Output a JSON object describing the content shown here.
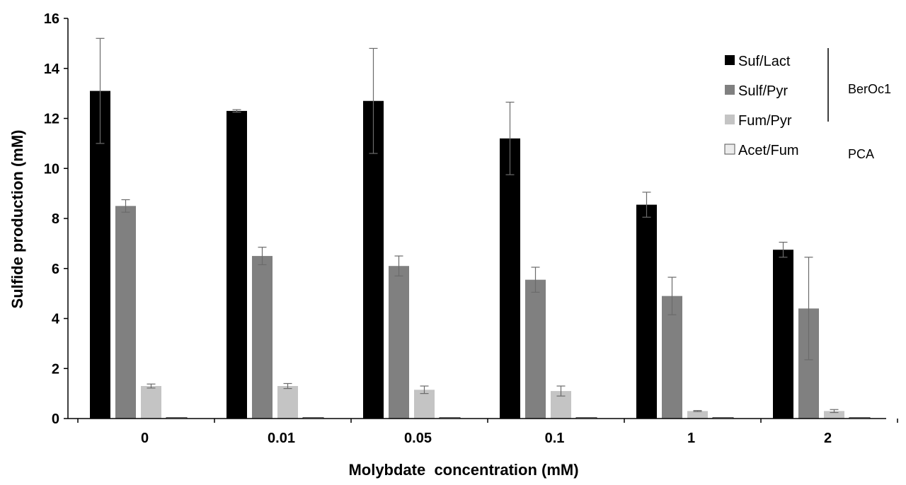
{
  "chart_data": {
    "type": "bar",
    "title": "",
    "xlabel": "Molybdate  concentration (mM)",
    "ylabel": "Sulfide production (mM)",
    "ylim": [
      0,
      16
    ],
    "yticks": [
      0,
      2,
      4,
      6,
      8,
      10,
      12,
      14,
      16
    ],
    "grid": false,
    "legend_position": "top-right",
    "categories": [
      "0",
      "0.01",
      "0.05",
      "0.1",
      "1",
      "2"
    ],
    "series": [
      {
        "name": "Suf/Lact",
        "color": "#000000",
        "values": [
          13.1,
          12.3,
          12.7,
          11.2,
          8.55,
          6.75
        ],
        "errors": [
          2.1,
          0.05,
          2.1,
          1.45,
          0.5,
          0.3
        ]
      },
      {
        "name": "Sulf/Pyr",
        "color": "#808080",
        "values": [
          8.5,
          6.5,
          6.1,
          5.55,
          4.9,
          4.4
        ],
        "errors": [
          0.25,
          0.35,
          0.4,
          0.5,
          0.75,
          2.05
        ]
      },
      {
        "name": "Fum/Pyr",
        "color": "#c4c4c4",
        "values": [
          1.3,
          1.3,
          1.15,
          1.1,
          0.3,
          0.3
        ],
        "errors": [
          0.08,
          0.1,
          0.15,
          0.2,
          0.02,
          0.06
        ]
      },
      {
        "name": "Acet/Fum",
        "color": "#ececec",
        "values": [
          0.03,
          0.03,
          0.03,
          0.03,
          0.03,
          0.03
        ],
        "errors": [
          0,
          0,
          0,
          0,
          0,
          0
        ]
      }
    ],
    "legend_groups": [
      {
        "label": "BerOc1",
        "series": [
          "Suf/Lact",
          "Sulf/Pyr",
          "Fum/Pyr"
        ]
      },
      {
        "label": "PCA",
        "series": [
          "Acet/Fum"
        ]
      }
    ]
  }
}
